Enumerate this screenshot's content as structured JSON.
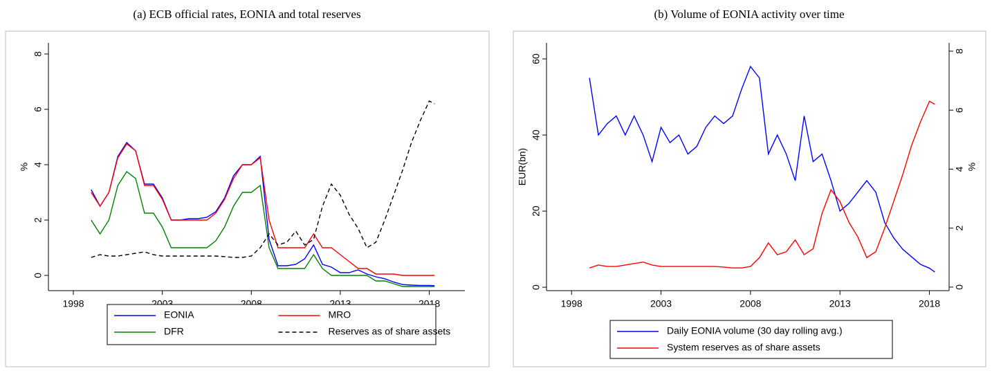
{
  "chart_data": [
    {
      "type": "line",
      "title": "(a) ECB official rates, EONIA and total reserves",
      "y_label": "%",
      "x": [
        1999.0,
        1999.5,
        2000.0,
        2000.5,
        2001.0,
        2001.5,
        2002.0,
        2002.5,
        2003.0,
        2003.5,
        2004.0,
        2004.5,
        2005.0,
        2005.5,
        2006.0,
        2006.5,
        2007.0,
        2007.5,
        2008.0,
        2008.5,
        2009.0,
        2009.5,
        2010.0,
        2010.5,
        2011.0,
        2011.5,
        2012.0,
        2012.5,
        2013.0,
        2013.5,
        2014.0,
        2014.5,
        2015.0,
        2015.5,
        2016.0,
        2016.5,
        2017.0,
        2017.5,
        2018.0,
        2018.3
      ],
      "xlim": [
        1996.6,
        2020
      ],
      "xticks": [
        1998,
        2003,
        2008,
        2013,
        2018
      ],
      "ylim": [
        -0.55,
        8.4
      ],
      "yticks": [
        0,
        2,
        4,
        6,
        8
      ],
      "series": [
        {
          "name": "EONIA",
          "color": "#0000ff",
          "values": [
            3.1,
            2.5,
            3.0,
            4.3,
            4.8,
            4.5,
            3.3,
            3.3,
            2.8,
            2.0,
            2.0,
            2.05,
            2.05,
            2.1,
            2.3,
            2.8,
            3.6,
            4.0,
            4.0,
            4.3,
            1.3,
            0.35,
            0.35,
            0.4,
            0.6,
            1.1,
            0.4,
            0.3,
            0.1,
            0.1,
            0.2,
            0.05,
            -0.05,
            -0.12,
            -0.24,
            -0.33,
            -0.35,
            -0.36,
            -0.36,
            -0.37
          ]
        },
        {
          "name": "MRO",
          "color": "#ff0000",
          "values": [
            3.0,
            2.5,
            3.0,
            4.25,
            4.75,
            4.5,
            3.25,
            3.25,
            2.75,
            2.0,
            2.0,
            2.0,
            2.0,
            2.0,
            2.25,
            2.75,
            3.5,
            4.0,
            4.0,
            4.25,
            2.0,
            1.0,
            1.0,
            1.0,
            1.0,
            1.5,
            1.0,
            1.0,
            0.75,
            0.5,
            0.25,
            0.25,
            0.05,
            0.05,
            0.05,
            0,
            0,
            0,
            0,
            0
          ]
        },
        {
          "name": "DFR",
          "color": "#008000",
          "values": [
            2.0,
            1.5,
            2.0,
            3.25,
            3.75,
            3.5,
            2.25,
            2.25,
            1.75,
            1.0,
            1.0,
            1.0,
            1.0,
            1.0,
            1.25,
            1.75,
            2.5,
            3.0,
            3.0,
            3.25,
            1.0,
            0.25,
            0.25,
            0.25,
            0.25,
            0.75,
            0.25,
            0,
            0,
            0,
            0,
            0,
            -0.2,
            -0.2,
            -0.3,
            -0.4,
            -0.4,
            -0.4,
            -0.4,
            -0.4
          ]
        },
        {
          "name": "Reserves as of share assets",
          "color": "#000000",
          "style": "dashed",
          "values": [
            0.65,
            0.75,
            0.7,
            0.7,
            0.75,
            0.8,
            0.85,
            0.75,
            0.7,
            0.7,
            0.7,
            0.7,
            0.7,
            0.7,
            0.7,
            0.68,
            0.65,
            0.65,
            0.7,
            1.0,
            1.5,
            1.1,
            1.2,
            1.6,
            1.1,
            1.3,
            2.5,
            3.3,
            2.9,
            2.2,
            1.7,
            1.0,
            1.2,
            2.0,
            2.9,
            3.8,
            4.8,
            5.6,
            6.3,
            6.2
          ]
        }
      ]
    },
    {
      "type": "line",
      "title": "(b) Volume of EONIA activity over time",
      "y_label": "EUR(bn)",
      "y2_label": "%",
      "x": [
        1999.0,
        1999.5,
        2000.0,
        2000.5,
        2001.0,
        2001.5,
        2002.0,
        2002.5,
        2003.0,
        2003.5,
        2004.0,
        2004.5,
        2005.0,
        2005.5,
        2006.0,
        2006.5,
        2007.0,
        2007.5,
        2008.0,
        2008.5,
        2009.0,
        2009.5,
        2010.0,
        2010.5,
        2011.0,
        2011.5,
        2012.0,
        2012.5,
        2013.0,
        2013.5,
        2014.0,
        2014.5,
        2015.0,
        2015.5,
        2016.0,
        2016.5,
        2017.0,
        2017.5,
        2018.0,
        2018.3
      ],
      "xlim": [
        1996.6,
        2019.1
      ],
      "xticks": [
        1998,
        2003,
        2008,
        2013,
        2018
      ],
      "ylim": [
        -0.9,
        64.2
      ],
      "yticks": [
        0,
        20,
        40,
        60
      ],
      "y2lim": [
        -0.12,
        8.28
      ],
      "y2ticks": [
        0,
        2,
        4,
        6,
        8
      ],
      "series": [
        {
          "name": "Daily EONIA volume (30 day rolling avg.)",
          "color": "#0000ff",
          "values": [
            55,
            40,
            43,
            45,
            40,
            45,
            40,
            33,
            42,
            38,
            40,
            35,
            37,
            42,
            45,
            43,
            45,
            52,
            58,
            55,
            35,
            40,
            35,
            28,
            45,
            33,
            35,
            28,
            20,
            22,
            25,
            28,
            25,
            17,
            13,
            10,
            8,
            6,
            5,
            4
          ]
        },
        {
          "name": "System reserves as of share assets",
          "color": "#ff0000",
          "axis": "y2",
          "values": [
            0.65,
            0.75,
            0.7,
            0.7,
            0.75,
            0.8,
            0.85,
            0.75,
            0.7,
            0.7,
            0.7,
            0.7,
            0.7,
            0.7,
            0.7,
            0.68,
            0.65,
            0.65,
            0.7,
            1.0,
            1.5,
            1.1,
            1.2,
            1.6,
            1.1,
            1.3,
            2.5,
            3.3,
            2.9,
            2.2,
            1.7,
            1.0,
            1.2,
            2.0,
            2.9,
            3.8,
            4.8,
            5.6,
            6.3,
            6.2
          ]
        }
      ]
    }
  ]
}
